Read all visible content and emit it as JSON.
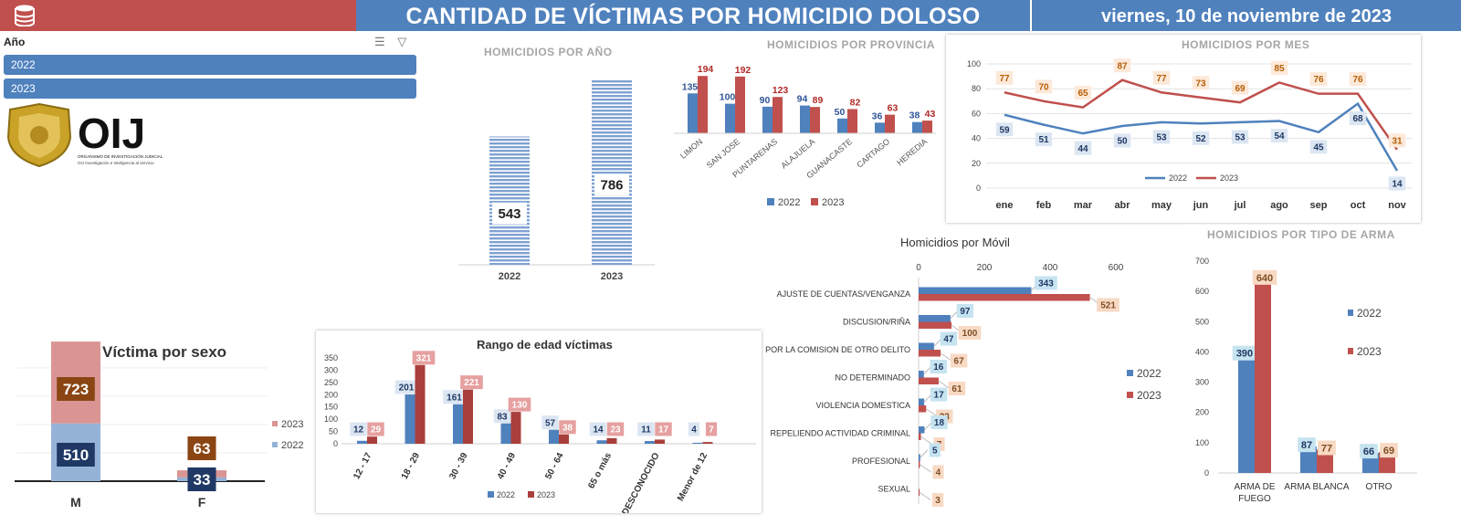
{
  "header": {
    "title": "CANTIDAD DE VÍCTIMAS POR HOMICIDIO DOLOSO",
    "date": "viernes, 10 de noviembre de 2023"
  },
  "slicer": {
    "title": "Año",
    "items": [
      "2022",
      "2023"
    ]
  },
  "logo": {
    "text": "OIJ",
    "line1": "ORGANISMO DE INVESTIGACIÓN JUDICIAL",
    "line2": "OIJ Investigación e Inteligencia al servicio"
  },
  "colors": {
    "blue": "#4f81bd",
    "red": "#c0504d",
    "darkred": "#a93f3c",
    "lightred": "#d99594",
    "lightblue": "#95b3d7"
  },
  "chart_data": [
    {
      "id": "por_anio",
      "type": "bar",
      "title": "HOMICIDIOS POR AÑO",
      "categories": [
        "2022",
        "2023"
      ],
      "values": [
        543,
        786
      ],
      "ylim": [
        0,
        850
      ]
    },
    {
      "id": "por_provincia",
      "type": "bar",
      "title": "HOMICIDIOS POR PROVINCIA",
      "categories": [
        "LIMON",
        "SAN JOSE",
        "PUNTARENAS",
        "ALAJUELA",
        "GUANACASTE",
        "CARTAGO",
        "HEREDIA"
      ],
      "series": [
        {
          "name": "2022",
          "values": [
            135,
            100,
            90,
            94,
            50,
            36,
            38
          ]
        },
        {
          "name": "2023",
          "values": [
            194,
            192,
            123,
            89,
            82,
            63,
            43
          ]
        }
      ],
      "ylim": [
        0,
        210
      ],
      "legend": "bottom"
    },
    {
      "id": "por_mes",
      "type": "line",
      "title": "HOMICIDIOS POR MES",
      "categories": [
        "ene",
        "feb",
        "mar",
        "abr",
        "may",
        "jun",
        "jul",
        "ago",
        "sep",
        "oct",
        "nov"
      ],
      "series": [
        {
          "name": "2022",
          "values": [
            59,
            51,
            44,
            50,
            53,
            52,
            53,
            54,
            45,
            68,
            14
          ]
        },
        {
          "name": "2023",
          "values": [
            77,
            70,
            65,
            87,
            77,
            73,
            69,
            85,
            76,
            76,
            31
          ]
        }
      ],
      "yticks": [
        0,
        20,
        40,
        60,
        80,
        100
      ],
      "ylim": [
        0,
        100
      ],
      "grid": true,
      "legend": "bottom"
    },
    {
      "id": "por_movil",
      "type": "bar",
      "orientation": "horizontal",
      "title": "Homicidios por Móvil",
      "categories": [
        "AJUSTE DE CUENTAS/VENGANZA",
        "DISCUSION/RIÑA",
        "POR LA COMISION DE OTRO DELITO",
        "NO DETERMINADO",
        "VIOLENCIA DOMESTICA",
        "REPELIENDO ACTIVIDAD CRIMINAL",
        "PROFESIONAL",
        "SEXUAL"
      ],
      "series": [
        {
          "name": "2022",
          "values": [
            343,
            97,
            47,
            16,
            17,
            18,
            5,
            0
          ]
        },
        {
          "name": "2023",
          "values": [
            521,
            100,
            67,
            61,
            23,
            7,
            4,
            3
          ]
        }
      ],
      "xticks": [
        0,
        200,
        400,
        600
      ],
      "xlim": [
        0,
        600
      ],
      "legend": "right"
    },
    {
      "id": "por_arma",
      "type": "bar",
      "title": "HOMICIDIOS POR TIPO DE ARMA",
      "categories": [
        "ARMA DE FUEGO",
        "ARMA BLANCA",
        "OTRO"
      ],
      "series": [
        {
          "name": "2022",
          "values": [
            390,
            87,
            66
          ]
        },
        {
          "name": "2023",
          "values": [
            640,
            77,
            69
          ]
        }
      ],
      "yticks": [
        0,
        100,
        200,
        300,
        400,
        500,
        600,
        700
      ],
      "ylim": [
        0,
        700
      ],
      "legend": "right"
    },
    {
      "id": "por_sexo",
      "type": "bar",
      "stacked": true,
      "title": "Víctima por sexo",
      "categories": [
        "M",
        "F"
      ],
      "series": [
        {
          "name": "2022",
          "values": [
            510,
            33
          ]
        },
        {
          "name": "2023",
          "values": [
            723,
            63
          ]
        }
      ],
      "ylim": [
        0,
        1250
      ],
      "legend": "right"
    },
    {
      "id": "rango_edad",
      "type": "bar",
      "title": "Rango de edad víctimas",
      "categories": [
        "12 - 17",
        "18 - 29",
        "30 - 39",
        "40 - 49",
        "50 - 64",
        "65 o más",
        "DESCONOCIDO",
        "Menor de 12"
      ],
      "series": [
        {
          "name": "2022",
          "values": [
            12,
            201,
            161,
            83,
            57,
            14,
            11,
            4
          ]
        },
        {
          "name": "2023",
          "values": [
            29,
            321,
            221,
            130,
            38,
            23,
            17,
            7
          ]
        }
      ],
      "yticks": [
        0,
        50,
        100,
        150,
        200,
        250,
        300,
        350
      ],
      "ylim": [
        0,
        350
      ],
      "legend": "bottom"
    }
  ]
}
